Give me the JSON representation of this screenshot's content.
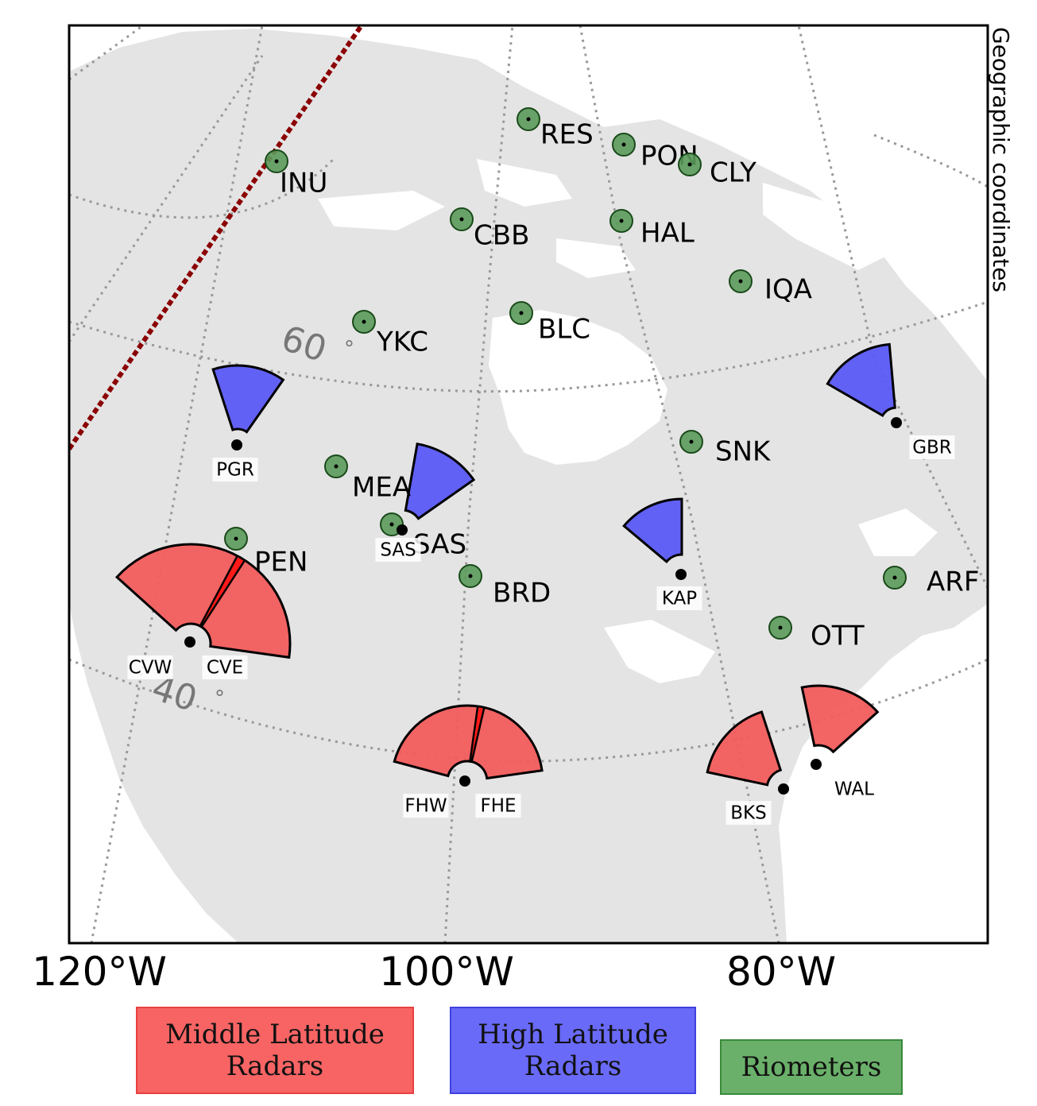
{
  "map": {
    "side_label": "Geographic coordinates",
    "longitude_labels": [
      "120°W",
      "100°W",
      "80°W"
    ],
    "latitude_labels": [
      "60",
      "40"
    ],
    "degree_symbol": "°",
    "colors": {
      "land": "#e4e4e4",
      "water": "#ffffff",
      "graticule": "#999999",
      "boundary_line": "#8b0000",
      "mid_latitude": "#f25c5c",
      "high_latitude": "#5a5af5",
      "riometer": "#5a9a5a"
    }
  },
  "riometers": [
    "RES",
    "PON",
    "CLY",
    "INU",
    "CBB",
    "HAL",
    "IQA",
    "YKC",
    "BLC",
    "SNK",
    "MEA",
    "SAS",
    "PEN",
    "BRD",
    "ARF",
    "OTT"
  ],
  "high_latitude_radars": [
    "PGR",
    "SAS",
    "KAP",
    "GBR"
  ],
  "mid_latitude_radars": [
    "CVW",
    "CVE",
    "FHW",
    "FHE",
    "BKS",
    "WAL"
  ],
  "legend": {
    "mid": "Middle Latitude\nRadars",
    "high": "High Latitude\nRadars",
    "riometers": "Riometers"
  }
}
